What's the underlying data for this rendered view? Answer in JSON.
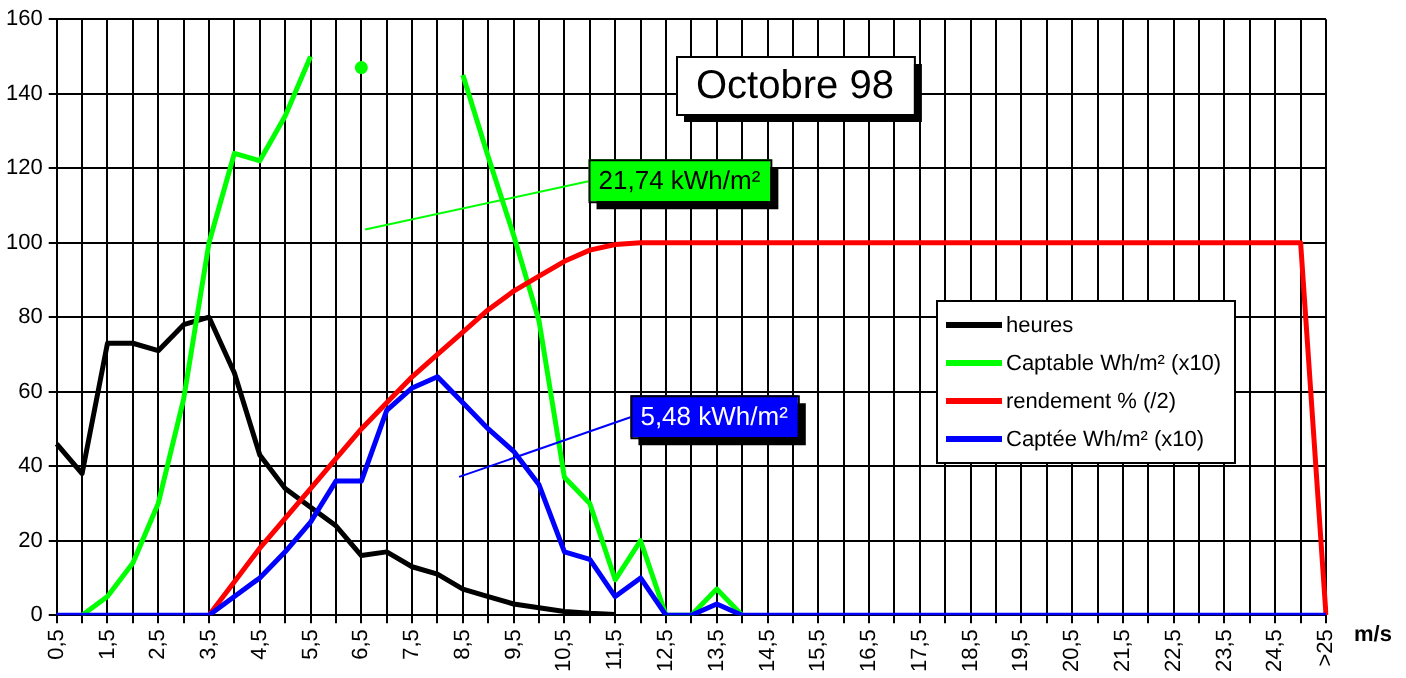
{
  "chart_data": {
    "type": "line",
    "title": "Octobre 98",
    "xlabel": "m/s",
    "categories": [
      "0,5",
      null,
      "1,5",
      null,
      "2,5",
      null,
      "3,5",
      null,
      "4,5",
      null,
      "5,5",
      null,
      "6,5",
      null,
      "7,5",
      null,
      "8,5",
      null,
      "9,5",
      null,
      "10,5",
      null,
      "11,5",
      null,
      "12,5",
      null,
      "13,5",
      null,
      "14,5",
      null,
      "15,5",
      null,
      "16,5",
      null,
      "17,5",
      null,
      "18,5",
      null,
      "19,5",
      null,
      "20,5",
      null,
      "21,5",
      null,
      "22,5",
      null,
      "23,5",
      null,
      "24,5",
      null,
      ">25"
    ],
    "series": [
      {
        "name": "heures",
        "color": "#000000",
        "values": [
          46,
          38,
          73,
          73,
          71,
          78,
          80,
          65,
          43,
          34,
          29,
          24,
          16,
          17,
          13,
          11,
          7,
          5,
          3,
          2,
          1,
          0.5,
          0.2,
          null,
          null,
          null,
          null,
          null,
          null,
          null,
          null,
          null,
          null,
          null,
          null,
          null,
          null,
          null,
          null,
          null,
          null,
          null,
          null,
          null,
          null,
          null,
          null,
          null,
          null,
          null,
          null
        ]
      },
      {
        "name": "Captable Wh/m² (x10)",
        "color": "#00ff00",
        "values": [
          null,
          0,
          5,
          14,
          30,
          58,
          100,
          124,
          122,
          134,
          150,
          null,
          147,
          null,
          null,
          null,
          145,
          123,
          102,
          79,
          37,
          30,
          9.5,
          20,
          0,
          0,
          7,
          0,
          null,
          null,
          null,
          null,
          null,
          null,
          null,
          null,
          null,
          null,
          null,
          null,
          null,
          null,
          null,
          null,
          null,
          null,
          null,
          null,
          null,
          null,
          null
        ]
      },
      {
        "name": "rendement % (/2)",
        "color": "#ff0000",
        "values": [
          null,
          null,
          null,
          null,
          null,
          null,
          0,
          9,
          18,
          26,
          34,
          42,
          50,
          57,
          64,
          70,
          76,
          82,
          87,
          91,
          95,
          98,
          99.5,
          100,
          100,
          100,
          100,
          100,
          100,
          100,
          100,
          100,
          100,
          100,
          100,
          100,
          100,
          100,
          100,
          100,
          100,
          100,
          100,
          100,
          100,
          100,
          100,
          100,
          100,
          100,
          0
        ]
      },
      {
        "name": "Captée Wh/m² (x10)",
        "color": "#0000ff",
        "values": [
          0,
          0,
          0,
          0,
          0,
          0,
          0,
          5,
          10,
          17,
          25,
          36,
          36,
          55,
          61,
          64,
          57,
          50,
          44,
          35,
          17,
          15,
          5,
          10,
          0,
          0,
          3,
          0,
          0,
          0,
          0,
          0,
          0,
          0,
          0,
          0,
          0,
          0,
          0,
          0,
          0,
          0,
          0,
          0,
          0,
          0,
          0,
          0,
          0,
          0,
          0
        ]
      }
    ],
    "ylim": [
      0,
      160
    ],
    "yticks": [
      0,
      20,
      40,
      60,
      80,
      100,
      120,
      140,
      160
    ],
    "grid": true,
    "legend": "right",
    "marker": "none",
    "line_style": "solid",
    "annotations": [
      "21,74 kWh/m²",
      "5,48 kWh/m²"
    ]
  }
}
